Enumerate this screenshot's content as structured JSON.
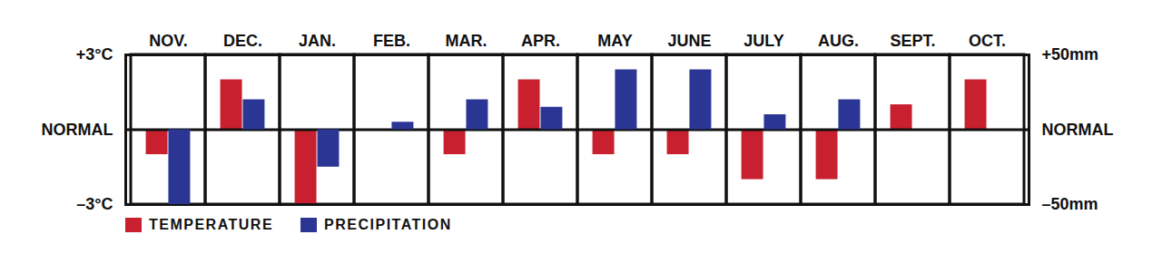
{
  "chart_data": {
    "type": "bar",
    "categories": [
      "NOV.",
      "DEC.",
      "JAN.",
      "FEB.",
      "MAR.",
      "APR.",
      "MAY",
      "JUNE",
      "JULY",
      "AUG.",
      "SEPT.",
      "OCT."
    ],
    "series": [
      {
        "name": "TEMPERATURE",
        "color": "#c8202f",
        "values": [
          -1,
          2,
          -3,
          0,
          -1,
          2,
          -1,
          -1,
          -2,
          -2,
          1,
          2
        ]
      },
      {
        "name": "PRECIPITATION",
        "color": "#2b3594",
        "axis": "y2",
        "values": [
          -50,
          20,
          -25,
          5,
          20,
          15,
          40,
          40,
          10,
          20,
          0,
          0
        ]
      }
    ],
    "ylim": [
      -3,
      3
    ],
    "yticks": [
      {
        "value": -3,
        "label": "–3°C"
      },
      {
        "value": 0,
        "label": "NORMAL"
      },
      {
        "value": 3,
        "label": "+3°C"
      }
    ],
    "y2lim": [
      -50,
      50
    ],
    "y2ticks": [
      {
        "value": -50,
        "label": "–50mm"
      },
      {
        "value": 0,
        "label": "NORMAL"
      },
      {
        "value": 50,
        "label": "+50mm"
      }
    ],
    "legend": "bottom-left"
  }
}
